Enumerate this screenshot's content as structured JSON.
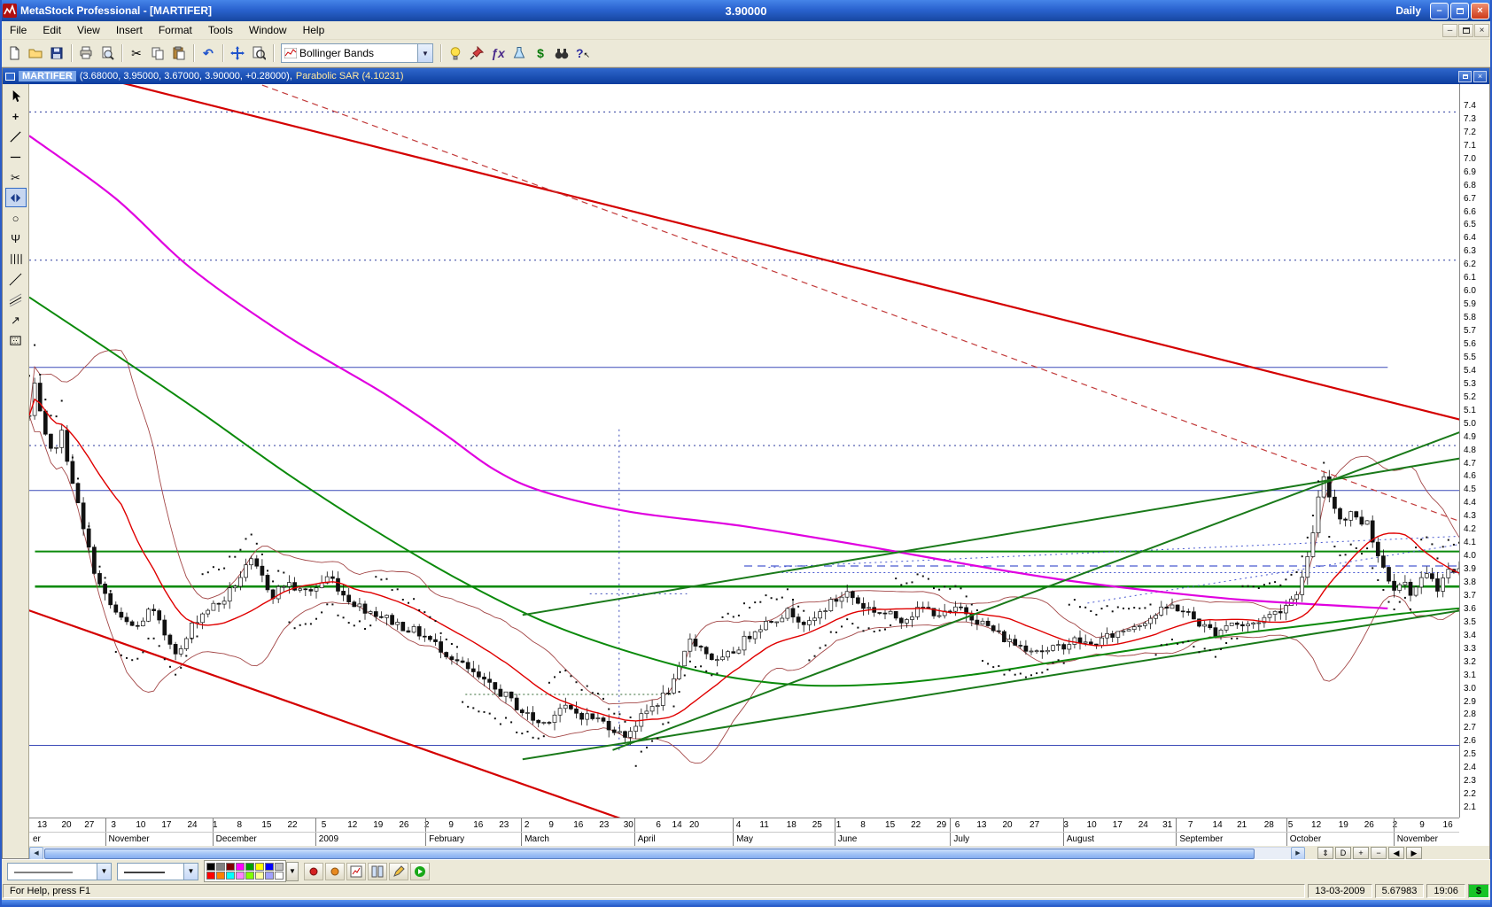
{
  "titlebar": {
    "title": "MetaStock Professional - [MARTIFER]",
    "center_value": "3.90000",
    "periodicity": "Daily"
  },
  "menubar": {
    "items": [
      "File",
      "Edit",
      "View",
      "Insert",
      "Format",
      "Tools",
      "Window",
      "Help"
    ]
  },
  "toolbar": {
    "indicator_quicklist": "Bollinger Bands",
    "groups": [
      [
        {
          "name": "new-chart-button",
          "icon": "new-page-icon"
        },
        {
          "name": "open-button",
          "icon": "open-folder-icon"
        },
        {
          "name": "save-button",
          "icon": "save-icon"
        }
      ],
      [
        {
          "name": "print-button",
          "icon": "printer-icon"
        },
        {
          "name": "print-preview-button",
          "icon": "print-preview-icon"
        }
      ],
      [
        {
          "name": "cut-button",
          "icon": "scissors-icon"
        },
        {
          "name": "copy-button",
          "icon": "copy-icon"
        },
        {
          "name": "paste-button",
          "icon": "paste-icon"
        }
      ],
      [
        {
          "name": "undo-button",
          "icon": "undo-icon"
        }
      ],
      [
        {
          "name": "pan-button",
          "icon": "move-cross-icon"
        },
        {
          "name": "zoom-button",
          "icon": "zoom-page-icon"
        }
      ]
    ],
    "right_groups": [
      [
        {
          "name": "expert-advisor-button",
          "icon": "bulb-icon"
        },
        {
          "name": "expert-commentary-button",
          "icon": "pin-icon"
        },
        {
          "name": "indicator-builder-button",
          "icon": "fx-icon"
        },
        {
          "name": "system-tester-button",
          "icon": "flask-icon"
        },
        {
          "name": "options-button",
          "icon": "dollar-icon"
        },
        {
          "name": "explorer-button",
          "icon": "binoculars-icon"
        },
        {
          "name": "context-help-button",
          "icon": "help-arrow-icon"
        }
      ]
    ]
  },
  "tools": {
    "items": [
      {
        "name": "pointer-tool",
        "icon": "pointer-icon"
      },
      {
        "name": "crosshair-tool",
        "icon": "crosshair-icon"
      },
      {
        "name": "trendline-tool",
        "icon": "trendline-icon"
      },
      {
        "name": "horizontal-line-tool",
        "icon": "hline-icon"
      },
      {
        "name": "delete-tool",
        "icon": "scissors-icon"
      },
      {
        "name": "scroll-tool",
        "icon": "lr-arrows-icon",
        "active": true
      },
      {
        "name": "ellipse-tool",
        "icon": "ellipse-icon"
      },
      {
        "name": "pitchfork-tool",
        "icon": "pitchfork-icon"
      },
      {
        "name": "cycle-lines-tool",
        "icon": "cycle-icon"
      },
      {
        "name": "gann-line-tool",
        "icon": "diag-icon"
      },
      {
        "name": "regression-tool",
        "icon": "regression-icon"
      },
      {
        "name": "arrow-tool",
        "icon": "arrow-icon"
      },
      {
        "name": "fill-pattern-tool",
        "icon": "pattern-icon"
      }
    ]
  },
  "chart": {
    "header": {
      "symbol": "MARTIFER",
      "ohlc": "(3.68000, 3.95000, 3.67000, 3.90000, +0.28000),",
      "indicator": "Parabolic SAR (4.10231)"
    }
  },
  "chart_data": {
    "type": "candlestick",
    "title": "MARTIFER daily candlesticks with Bollinger Bands, Parabolic SAR, moving averages and trend channels",
    "candle_count": 265,
    "scale": {
      "top": 7.56,
      "bottom": 2.02
    },
    "y_axis": {
      "max": 7.4,
      "min": 2.1,
      "step": 0.1
    },
    "last": {
      "open": 3.68,
      "high": 3.95,
      "low": 3.67,
      "close": 3.9,
      "change": "+0.28000",
      "sar": 4.10231
    },
    "price_anchors": [
      [
        0.0,
        5.05
      ],
      [
        0.004,
        5.28
      ],
      [
        0.01,
        4.92
      ],
      [
        0.016,
        4.75
      ],
      [
        0.022,
        4.95
      ],
      [
        0.03,
        4.58
      ],
      [
        0.038,
        4.18
      ],
      [
        0.048,
        3.8
      ],
      [
        0.055,
        3.65
      ],
      [
        0.065,
        3.5
      ],
      [
        0.075,
        3.45
      ],
      [
        0.085,
        3.6
      ],
      [
        0.095,
        3.4
      ],
      [
        0.105,
        3.25
      ],
      [
        0.115,
        3.5
      ],
      [
        0.125,
        3.6
      ],
      [
        0.135,
        3.65
      ],
      [
        0.145,
        3.8
      ],
      [
        0.155,
        3.95
      ],
      [
        0.162,
        3.85
      ],
      [
        0.17,
        3.7
      ],
      [
        0.18,
        3.8
      ],
      [
        0.19,
        3.72
      ],
      [
        0.2,
        3.75
      ],
      [
        0.21,
        3.85
      ],
      [
        0.22,
        3.7
      ],
      [
        0.23,
        3.62
      ],
      [
        0.245,
        3.55
      ],
      [
        0.26,
        3.47
      ],
      [
        0.275,
        3.4
      ],
      [
        0.29,
        3.28
      ],
      [
        0.305,
        3.15
      ],
      [
        0.32,
        3.02
      ],
      [
        0.332,
        2.95
      ],
      [
        0.345,
        2.82
      ],
      [
        0.358,
        2.72
      ],
      [
        0.372,
        2.85
      ],
      [
        0.385,
        2.8
      ],
      [
        0.398,
        2.76
      ],
      [
        0.408,
        2.7
      ],
      [
        0.415,
        2.63
      ],
      [
        0.422,
        2.7
      ],
      [
        0.432,
        2.82
      ],
      [
        0.442,
        2.92
      ],
      [
        0.452,
        3.05
      ],
      [
        0.462,
        3.38
      ],
      [
        0.472,
        3.28
      ],
      [
        0.482,
        3.18
      ],
      [
        0.495,
        3.3
      ],
      [
        0.508,
        3.45
      ],
      [
        0.52,
        3.52
      ],
      [
        0.532,
        3.58
      ],
      [
        0.545,
        3.47
      ],
      [
        0.558,
        3.62
      ],
      [
        0.572,
        3.72
      ],
      [
        0.582,
        3.62
      ],
      [
        0.595,
        3.57
      ],
      [
        0.61,
        3.52
      ],
      [
        0.625,
        3.6
      ],
      [
        0.64,
        3.55
      ],
      [
        0.652,
        3.6
      ],
      [
        0.662,
        3.52
      ],
      [
        0.672,
        3.45
      ],
      [
        0.682,
        3.37
      ],
      [
        0.692,
        3.32
      ],
      [
        0.702,
        3.3
      ],
      [
        0.712,
        3.27
      ],
      [
        0.722,
        3.32
      ],
      [
        0.732,
        3.36
      ],
      [
        0.742,
        3.32
      ],
      [
        0.752,
        3.37
      ],
      [
        0.762,
        3.42
      ],
      [
        0.772,
        3.47
      ],
      [
        0.782,
        3.52
      ],
      [
        0.792,
        3.58
      ],
      [
        0.8,
        3.62
      ],
      [
        0.81,
        3.56
      ],
      [
        0.82,
        3.47
      ],
      [
        0.83,
        3.42
      ],
      [
        0.84,
        3.5
      ],
      [
        0.85,
        3.46
      ],
      [
        0.86,
        3.51
      ],
      [
        0.87,
        3.56
      ],
      [
        0.878,
        3.62
      ],
      [
        0.885,
        3.7
      ],
      [
        0.89,
        3.82
      ],
      [
        0.895,
        4.0
      ],
      [
        0.9,
        4.35
      ],
      [
        0.905,
        4.58
      ],
      [
        0.91,
        4.42
      ],
      [
        0.915,
        4.32
      ],
      [
        0.92,
        4.26
      ],
      [
        0.925,
        4.36
      ],
      [
        0.93,
        4.22
      ],
      [
        0.935,
        4.3
      ],
      [
        0.94,
        4.1
      ],
      [
        0.945,
        3.95
      ],
      [
        0.95,
        3.85
      ],
      [
        0.955,
        3.76
      ],
      [
        0.96,
        3.82
      ],
      [
        0.965,
        3.72
      ],
      [
        0.97,
        3.76
      ],
      [
        0.975,
        3.82
      ],
      [
        0.98,
        3.86
      ],
      [
        0.985,
        3.76
      ],
      [
        0.992,
        3.88
      ],
      [
        1.0,
        3.9
      ]
    ],
    "overlays": {
      "magenta_ma": [
        [
          0,
          7.17
        ],
        [
          0.06,
          6.7
        ],
        [
          0.113,
          6.17
        ],
        [
          0.18,
          5.66
        ],
        [
          0.247,
          5.23
        ],
        [
          0.29,
          4.92
        ],
        [
          0.325,
          4.65
        ],
        [
          0.36,
          4.48
        ],
        [
          0.42,
          4.33
        ],
        [
          0.5,
          4.22
        ],
        [
          0.585,
          4.07
        ],
        [
          0.652,
          3.94
        ],
        [
          0.72,
          3.82
        ],
        [
          0.787,
          3.73
        ],
        [
          0.854,
          3.66
        ],
        [
          0.95,
          3.6
        ]
      ],
      "green_ma": [
        [
          0,
          5.95
        ],
        [
          0.06,
          5.52
        ],
        [
          0.12,
          5.08
        ],
        [
          0.18,
          4.62
        ],
        [
          0.24,
          4.2
        ],
        [
          0.3,
          3.82
        ],
        [
          0.36,
          3.5
        ],
        [
          0.42,
          3.27
        ],
        [
          0.48,
          3.1
        ],
        [
          0.54,
          3.02
        ],
        [
          0.6,
          3.03
        ],
        [
          0.66,
          3.1
        ],
        [
          0.72,
          3.2
        ],
        [
          0.78,
          3.3
        ],
        [
          0.84,
          3.4
        ],
        [
          0.9,
          3.48
        ],
        [
          0.96,
          3.56
        ],
        [
          1,
          3.6
        ]
      ],
      "bollinger": {
        "period": 18,
        "mult": 2
      },
      "trendlines": [
        {
          "name": "red-upper-channel",
          "color": "#d40000",
          "width": 2.2,
          "p1": [
            -0.02,
            7.8
          ],
          "p2": [
            1.01,
            5.0
          ]
        },
        {
          "name": "red-dashed-midline",
          "color": "#c23a3a",
          "width": 1.2,
          "dash": "7,5",
          "p1": [
            0.1,
            7.8
          ],
          "p2": [
            1.01,
            4.22
          ]
        },
        {
          "name": "red-lower-channel",
          "color": "#d40000",
          "width": 2.2,
          "p1": [
            -0.02,
            3.66
          ],
          "p2": [
            0.43,
            1.95
          ]
        },
        {
          "name": "green-channel-upper",
          "color": "#1a7a1a",
          "width": 2,
          "p1": [
            0.345,
            3.55
          ],
          "p2": [
            1.01,
            4.75
          ]
        },
        {
          "name": "green-channel-lower",
          "color": "#1a7a1a",
          "width": 2,
          "p1": [
            0.345,
            2.46
          ],
          "p2": [
            1.01,
            3.6
          ]
        },
        {
          "name": "green-steep-support",
          "color": "#1a7a1a",
          "width": 2,
          "p1": [
            0.408,
            2.53
          ],
          "p2": [
            1.01,
            4.97
          ]
        }
      ],
      "horizontals": [
        {
          "price": 7.35,
          "color": "#2b3a9e",
          "dash": "2,4",
          "width": 1,
          "from": 0,
          "to": 1
        },
        {
          "price": 6.23,
          "color": "#2b3a9e",
          "dash": "2,4",
          "width": 1,
          "from": 0,
          "to": 1
        },
        {
          "price": 4.83,
          "color": "#2b3a9e",
          "dash": "2,4",
          "width": 1,
          "from": 0,
          "to": 1
        },
        {
          "price": 5.42,
          "color": "#3b4ab8",
          "width": 1,
          "from": 0,
          "to": 0.95
        },
        {
          "price": 4.49,
          "color": "#3b4ab8",
          "width": 1,
          "from": 0,
          "to": 1
        },
        {
          "price": 2.565,
          "color": "#3b4ab8",
          "width": 1,
          "from": 0,
          "to": 1
        },
        {
          "price": 4.03,
          "color": "#0b8a0b",
          "width": 2,
          "from": 0.004,
          "to": 1
        },
        {
          "price": 3.765,
          "color": "#0b8a0b",
          "width": 2.6,
          "from": 0.004,
          "to": 1
        },
        {
          "price": 3.92,
          "color": "#4a5ad0",
          "dash": "9,6",
          "width": 1.2,
          "from": 0.5,
          "to": 1
        },
        {
          "price": 3.87,
          "color": "#4a5ad0",
          "dash": "2,3",
          "width": 1,
          "from": 0.52,
          "to": 1
        },
        {
          "price": 3.71,
          "color": "#3b4ab8",
          "dash": "2,4",
          "width": 1,
          "from": 0.392,
          "to": 0.46
        },
        {
          "price": 2.95,
          "color": "#356a35",
          "dash": "2,3",
          "width": 1,
          "from": 0.305,
          "to": 0.45
        }
      ],
      "verticals": [
        {
          "t": 0.4125,
          "from": 2.53,
          "to": 4.97,
          "color": "#3b4ab8",
          "dash": "2,4"
        }
      ],
      "dotted_diagonals": [
        {
          "p1": [
            0.517,
            3.91
          ],
          "p2": [
            1.01,
            4.15
          ]
        },
        {
          "p1": [
            0.74,
            3.64
          ],
          "p2": [
            1.01,
            4.1
          ]
        }
      ],
      "sar": {
        "flip": 16,
        "offset": 0.3,
        "decay": 0.013
      }
    },
    "x_axis": {
      "day_ticks": [
        [
          "13",
          0.009
        ],
        [
          "20",
          0.026
        ],
        [
          "27",
          0.042
        ],
        [
          "3",
          0.059
        ],
        [
          "10",
          0.078
        ],
        [
          "17",
          0.096
        ],
        [
          "24",
          0.114
        ],
        [
          "1",
          0.13
        ],
        [
          "8",
          0.147
        ],
        [
          "15",
          0.166
        ],
        [
          "22",
          0.184
        ],
        [
          "5",
          0.206
        ],
        [
          "12",
          0.226
        ],
        [
          "19",
          0.244
        ],
        [
          "26",
          0.262
        ],
        [
          "2",
          0.278
        ],
        [
          "9",
          0.295
        ],
        [
          "16",
          0.314
        ],
        [
          "23",
          0.332
        ],
        [
          "2",
          0.348
        ],
        [
          "9",
          0.365
        ],
        [
          "16",
          0.384
        ],
        [
          "23",
          0.402
        ],
        [
          "30",
          0.419
        ],
        [
          "6",
          0.44
        ],
        [
          "14",
          0.453
        ],
        [
          "20",
          0.465
        ],
        [
          "4",
          0.496
        ],
        [
          "11",
          0.514
        ],
        [
          "18",
          0.533
        ],
        [
          "25",
          0.551
        ],
        [
          "1",
          0.566
        ],
        [
          "8",
          0.583
        ],
        [
          "15",
          0.602
        ],
        [
          "22",
          0.62
        ],
        [
          "29",
          0.638
        ],
        [
          "6",
          0.649
        ],
        [
          "13",
          0.666
        ],
        [
          "20",
          0.684
        ],
        [
          "27",
          0.703
        ],
        [
          "3",
          0.725
        ],
        [
          "10",
          0.743
        ],
        [
          "17",
          0.761
        ],
        [
          "24",
          0.779
        ],
        [
          "31",
          0.796
        ],
        [
          "7",
          0.812
        ],
        [
          "14",
          0.831
        ],
        [
          "21",
          0.848
        ],
        [
          "28",
          0.867
        ],
        [
          "5",
          0.882
        ],
        [
          "12",
          0.9
        ],
        [
          "19",
          0.919
        ],
        [
          "26",
          0.937
        ],
        [
          "2",
          0.955
        ],
        [
          "9",
          0.974
        ],
        [
          "16",
          0.992
        ]
      ],
      "months": [
        [
          "er",
          0.0
        ],
        [
          "November",
          0.053
        ],
        [
          "December",
          0.128
        ],
        [
          "2009",
          0.2
        ],
        [
          "February",
          0.277
        ],
        [
          "March",
          0.344
        ],
        [
          "April",
          0.423
        ],
        [
          "May",
          0.492
        ],
        [
          "June",
          0.563
        ],
        [
          "July",
          0.644
        ],
        [
          "August",
          0.723
        ],
        [
          "September",
          0.802
        ],
        [
          "October",
          0.879
        ],
        [
          "November",
          0.954
        ]
      ]
    }
  },
  "scrollbar": {
    "buttons": [
      {
        "name": "vertical-zoom-button",
        "glyph": "⇕"
      },
      {
        "name": "periodicity-daily-button",
        "glyph": "D"
      },
      {
        "name": "zoom-in-button",
        "glyph": "+"
      },
      {
        "name": "zoom-out-button",
        "glyph": "−"
      },
      {
        "name": "page-left-button",
        "glyph": "◀"
      },
      {
        "name": "page-right-button",
        "glyph": "▶"
      }
    ]
  },
  "bottombar": {
    "palette": [
      "#000000",
      "#808080",
      "#800000",
      "#ff00ff",
      "#00a000",
      "#ffff00",
      "#0000ff",
      "#c0c0c0",
      "#ff0000",
      "#ff8000",
      "#00ffff",
      "#ff80ff",
      "#80ff00",
      "#ffffa0",
      "#a0a0ff",
      "#ffffff"
    ],
    "buttons": [
      {
        "name": "style-red-dot-button",
        "icon": "dot-red-icon"
      },
      {
        "name": "style-orange-dot-button",
        "icon": "dot-orange-icon"
      },
      {
        "name": "new-inner-window-button",
        "icon": "mini-chart-icon"
      },
      {
        "name": "window-layout-button",
        "icon": "layout-icon"
      },
      {
        "name": "notes-button",
        "icon": "pencil-icon"
      },
      {
        "name": "go-button",
        "icon": "go-icon"
      }
    ]
  },
  "statusbar": {
    "help_text": "For Help, press F1",
    "date": "13-03-2009",
    "price": "5.67983",
    "time": "19:06",
    "currency": "$"
  }
}
